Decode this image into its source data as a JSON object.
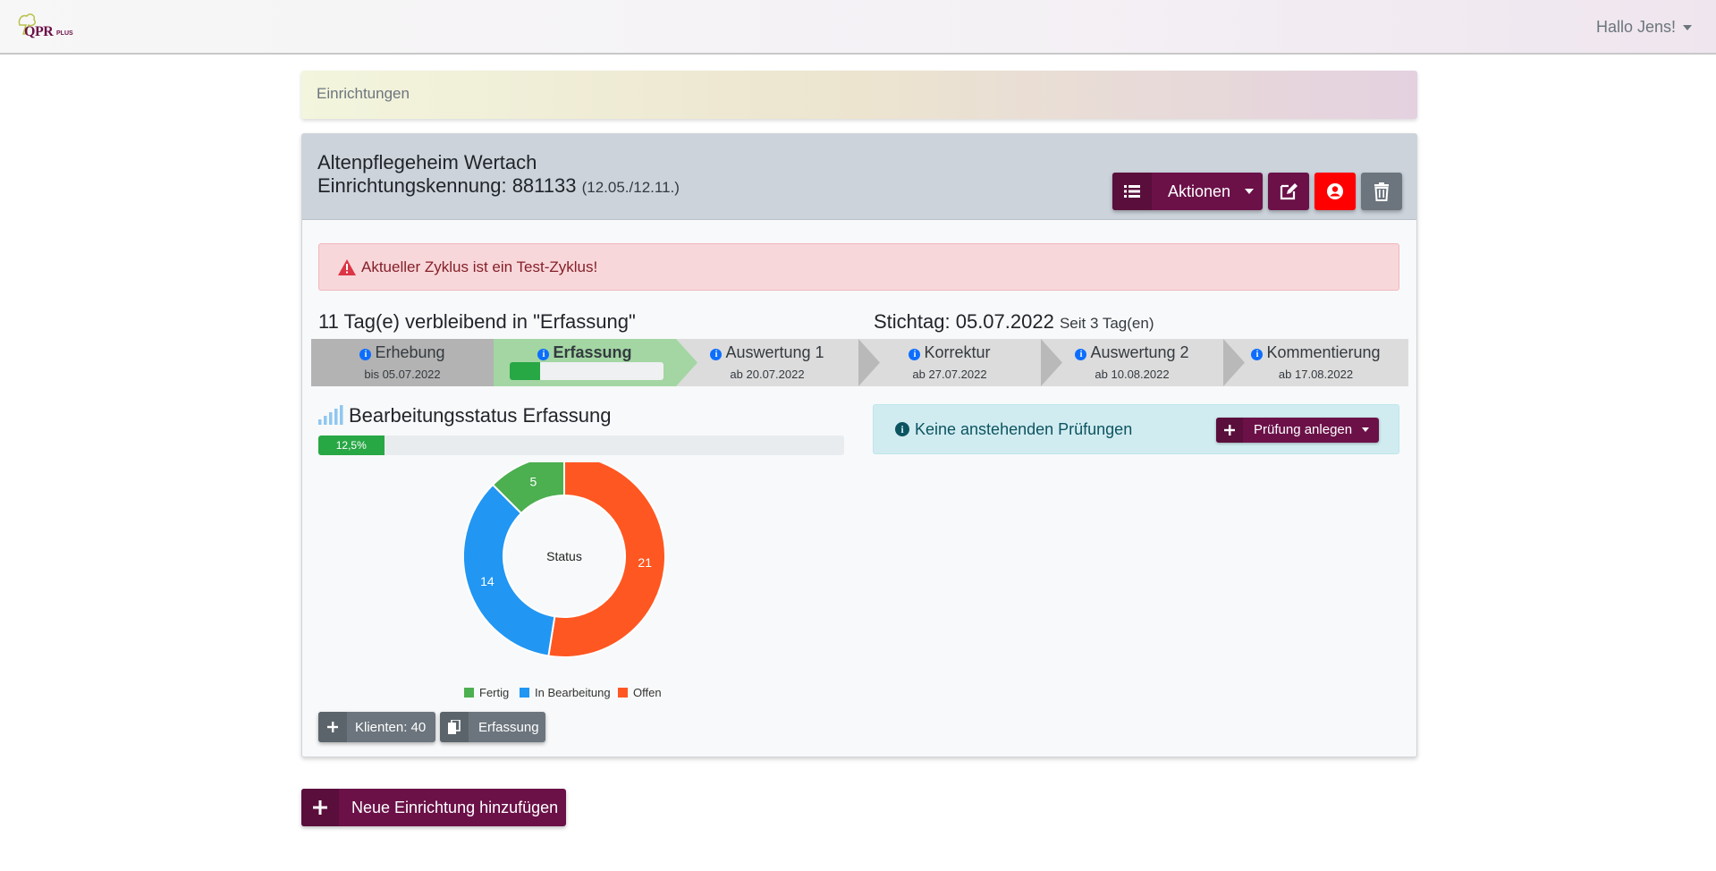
{
  "header": {
    "logo_text": "QPR",
    "logo_suffix": "PLUS",
    "user_greeting": "Hallo Jens!"
  },
  "breadcrumb": {
    "label": "Einrichtungen"
  },
  "facility": {
    "name": "Altenpflegeheim Wertach",
    "id_label": "Einrichtungskennung: 881133",
    "cycle_dates": "(12.05./12.11.)",
    "actions_label": "Aktionen",
    "alert_text": "Aktueller Zyklus ist ein Test-Zyklus!",
    "days_remaining": "11 Tag(e) verbleibend in \"Erfassung\"",
    "stichtag_label": "Stichtag: 05.07.2022",
    "stichtag_since": "Seit 3 Tag(en)",
    "steps": [
      {
        "name": "Erhebung",
        "date": "bis 05.07.2022"
      },
      {
        "name": "Erfassung",
        "progress": 0.2
      },
      {
        "name": "Auswertung 1",
        "date": "ab 20.07.2022"
      },
      {
        "name": "Korrektur",
        "date": "ab 27.07.2022"
      },
      {
        "name": "Auswertung 2",
        "date": "ab 10.08.2022"
      },
      {
        "name": "Kommentierung",
        "date": "ab 17.08.2022"
      }
    ],
    "status_title": "Bearbeitungsstatus Erfassung",
    "progress_label": "12,5%",
    "progress_value": 12.5,
    "pruefungen_text": "Keine anstehenden Prüfungen",
    "pruefung_button": "Prüfung anlegen",
    "clients_button": "Klienten: 40",
    "erfassung_button": "Erfassung"
  },
  "add_facility_button": "Neue Einrichtung hinzufügen",
  "colors": {
    "brand": "#6b1148",
    "success": "#28a745",
    "danger": "#ff0000",
    "secondary": "#6c757d",
    "chart_fertig": "#4caf50",
    "chart_bearbeitung": "#2196f3",
    "chart_offen": "#ff5722"
  },
  "chart_data": {
    "type": "pie",
    "title": "Status",
    "categories": [
      "Fertig",
      "In Bearbeitung",
      "Offen"
    ],
    "values": [
      5,
      14,
      21
    ],
    "legend_position": "bottom"
  }
}
